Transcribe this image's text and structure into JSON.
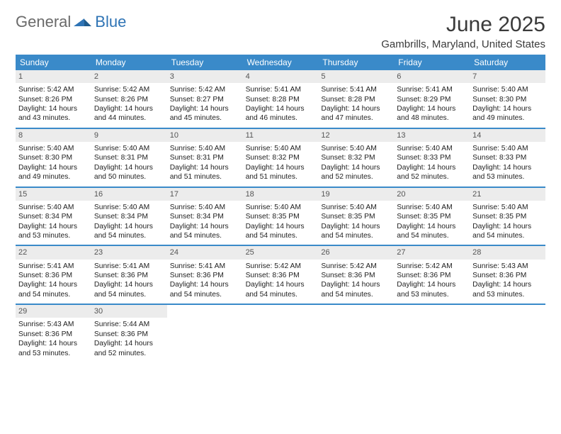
{
  "brand": {
    "word1": "General",
    "word2": "Blue"
  },
  "title": "June 2025",
  "location": "Gambrills, Maryland, United States",
  "colors": {
    "header_bg": "#3a8ac9",
    "header_text": "#ffffff",
    "daynum_bg": "#ececec",
    "rule": "#3a8ac9",
    "brand_gray": "#6a6a6a",
    "brand_blue": "#2f74b5"
  },
  "day_headers": [
    "Sunday",
    "Monday",
    "Tuesday",
    "Wednesday",
    "Thursday",
    "Friday",
    "Saturday"
  ],
  "weeks": [
    [
      {
        "n": "1",
        "sr": "5:42 AM",
        "ss": "8:26 PM",
        "dl": "14 hours and 43 minutes."
      },
      {
        "n": "2",
        "sr": "5:42 AM",
        "ss": "8:26 PM",
        "dl": "14 hours and 44 minutes."
      },
      {
        "n": "3",
        "sr": "5:42 AM",
        "ss": "8:27 PM",
        "dl": "14 hours and 45 minutes."
      },
      {
        "n": "4",
        "sr": "5:41 AM",
        "ss": "8:28 PM",
        "dl": "14 hours and 46 minutes."
      },
      {
        "n": "5",
        "sr": "5:41 AM",
        "ss": "8:28 PM",
        "dl": "14 hours and 47 minutes."
      },
      {
        "n": "6",
        "sr": "5:41 AM",
        "ss": "8:29 PM",
        "dl": "14 hours and 48 minutes."
      },
      {
        "n": "7",
        "sr": "5:40 AM",
        "ss": "8:30 PM",
        "dl": "14 hours and 49 minutes."
      }
    ],
    [
      {
        "n": "8",
        "sr": "5:40 AM",
        "ss": "8:30 PM",
        "dl": "14 hours and 49 minutes."
      },
      {
        "n": "9",
        "sr": "5:40 AM",
        "ss": "8:31 PM",
        "dl": "14 hours and 50 minutes."
      },
      {
        "n": "10",
        "sr": "5:40 AM",
        "ss": "8:31 PM",
        "dl": "14 hours and 51 minutes."
      },
      {
        "n": "11",
        "sr": "5:40 AM",
        "ss": "8:32 PM",
        "dl": "14 hours and 51 minutes."
      },
      {
        "n": "12",
        "sr": "5:40 AM",
        "ss": "8:32 PM",
        "dl": "14 hours and 52 minutes."
      },
      {
        "n": "13",
        "sr": "5:40 AM",
        "ss": "8:33 PM",
        "dl": "14 hours and 52 minutes."
      },
      {
        "n": "14",
        "sr": "5:40 AM",
        "ss": "8:33 PM",
        "dl": "14 hours and 53 minutes."
      }
    ],
    [
      {
        "n": "15",
        "sr": "5:40 AM",
        "ss": "8:34 PM",
        "dl": "14 hours and 53 minutes."
      },
      {
        "n": "16",
        "sr": "5:40 AM",
        "ss": "8:34 PM",
        "dl": "14 hours and 54 minutes."
      },
      {
        "n": "17",
        "sr": "5:40 AM",
        "ss": "8:34 PM",
        "dl": "14 hours and 54 minutes."
      },
      {
        "n": "18",
        "sr": "5:40 AM",
        "ss": "8:35 PM",
        "dl": "14 hours and 54 minutes."
      },
      {
        "n": "19",
        "sr": "5:40 AM",
        "ss": "8:35 PM",
        "dl": "14 hours and 54 minutes."
      },
      {
        "n": "20",
        "sr": "5:40 AM",
        "ss": "8:35 PM",
        "dl": "14 hours and 54 minutes."
      },
      {
        "n": "21",
        "sr": "5:40 AM",
        "ss": "8:35 PM",
        "dl": "14 hours and 54 minutes."
      }
    ],
    [
      {
        "n": "22",
        "sr": "5:41 AM",
        "ss": "8:36 PM",
        "dl": "14 hours and 54 minutes."
      },
      {
        "n": "23",
        "sr": "5:41 AM",
        "ss": "8:36 PM",
        "dl": "14 hours and 54 minutes."
      },
      {
        "n": "24",
        "sr": "5:41 AM",
        "ss": "8:36 PM",
        "dl": "14 hours and 54 minutes."
      },
      {
        "n": "25",
        "sr": "5:42 AM",
        "ss": "8:36 PM",
        "dl": "14 hours and 54 minutes."
      },
      {
        "n": "26",
        "sr": "5:42 AM",
        "ss": "8:36 PM",
        "dl": "14 hours and 54 minutes."
      },
      {
        "n": "27",
        "sr": "5:42 AM",
        "ss": "8:36 PM",
        "dl": "14 hours and 53 minutes."
      },
      {
        "n": "28",
        "sr": "5:43 AM",
        "ss": "8:36 PM",
        "dl": "14 hours and 53 minutes."
      }
    ],
    [
      {
        "n": "29",
        "sr": "5:43 AM",
        "ss": "8:36 PM",
        "dl": "14 hours and 53 minutes."
      },
      {
        "n": "30",
        "sr": "5:44 AM",
        "ss": "8:36 PM",
        "dl": "14 hours and 52 minutes."
      }
    ]
  ],
  "labels": {
    "sunrise": "Sunrise:",
    "sunset": "Sunset:",
    "daylight": "Daylight:"
  }
}
